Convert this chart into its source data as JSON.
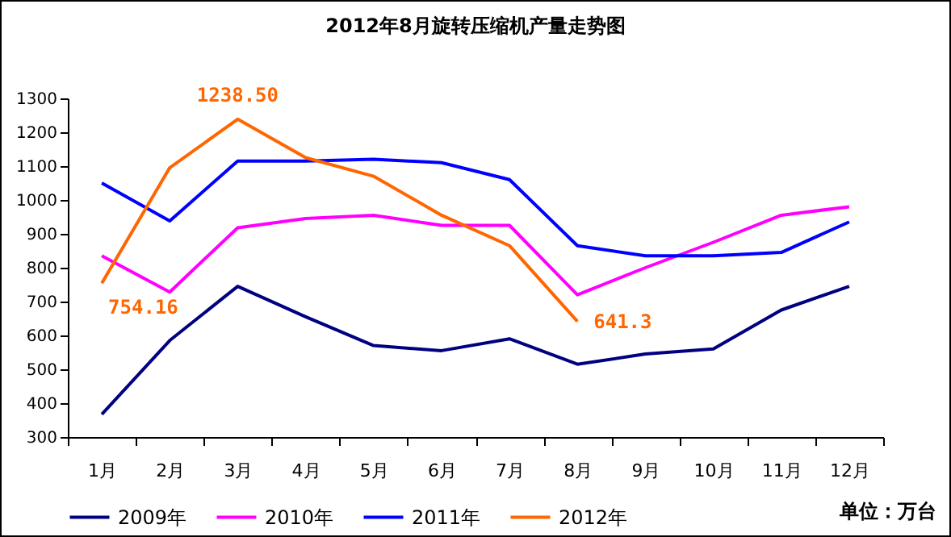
{
  "chart_data": {
    "type": "line",
    "title": "2012年8月旋转压缩机产量走势图",
    "categories": [
      "1月",
      "2月",
      "3月",
      "4月",
      "5月",
      "6月",
      "7月",
      "8月",
      "9月",
      "10月",
      "11月",
      "12月"
    ],
    "series": [
      {
        "name": "2009年",
        "color": "#000080",
        "values": [
          367,
          585,
          745,
          655,
          570,
          555,
          590,
          515,
          545,
          560,
          675,
          745
        ]
      },
      {
        "name": "2010年",
        "color": "#ff00ff",
        "values": [
          835,
          728,
          918,
          945,
          955,
          925,
          925,
          720,
          800,
          875,
          955,
          980
        ]
      },
      {
        "name": "2011年",
        "color": "#0000ff",
        "values": [
          1050,
          938,
          1115,
          1115,
          1120,
          1110,
          1060,
          865,
          835,
          835,
          845,
          935
        ]
      },
      {
        "name": "2012年",
        "color": "#ff6600",
        "values": [
          754.16,
          1095,
          1238.5,
          1125,
          1070,
          955,
          865,
          641.3,
          null,
          null,
          null,
          null
        ],
        "value_labels": [
          "754.16",
          null,
          "1238.50",
          null,
          null,
          null,
          null,
          "641.3",
          null,
          null,
          null,
          null
        ]
      }
    ],
    "ylim": [
      300,
      1300
    ],
    "yticks": [
      300,
      400,
      500,
      600,
      700,
      800,
      900,
      1000,
      1100,
      1200,
      1300
    ],
    "grid": false,
    "legend": "bottom",
    "marker": "none",
    "line_style": "solid",
    "annotations": [
      "单位：万台"
    ]
  }
}
